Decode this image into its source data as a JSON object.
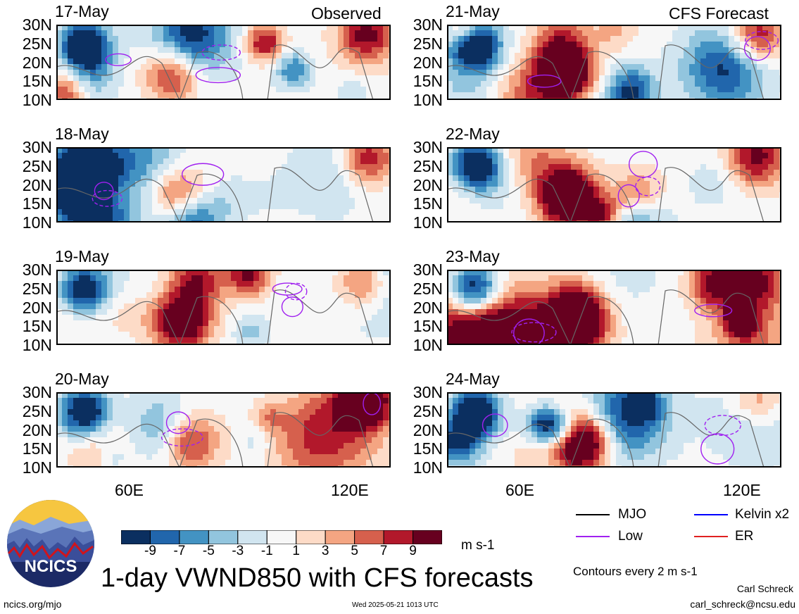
{
  "header": {
    "observed_label": "Observed",
    "forecast_label": "CFS Forecast"
  },
  "panels": {
    "left": [
      "17-May",
      "18-May",
      "19-May",
      "20-May"
    ],
    "right": [
      "21-May",
      "22-May",
      "23-May",
      "24-May"
    ]
  },
  "chart_data": {
    "type": "heatmap",
    "title": "1-day VWND850 with CFS forecasts",
    "variable": "VWND850",
    "units": "m s-1",
    "y_ticks": [
      "30N",
      "25N",
      "20N",
      "15N",
      "10N"
    ],
    "x_ticks": [
      "60E",
      "120E"
    ],
    "lat_range": [
      10,
      30
    ],
    "lon_range": [
      40,
      130
    ],
    "colorbar_levels": [
      "-9",
      "-7",
      "-5",
      "-3",
      "-1",
      "1",
      "3",
      "5",
      "7",
      "9"
    ],
    "colorbar_colors": [
      "#0b2f60",
      "#2166ac",
      "#4393c3",
      "#92c5de",
      "#d1e5f0",
      "#f7f7f7",
      "#fddbc7",
      "#f4a582",
      "#d6604d",
      "#b2182b",
      "#67001f"
    ],
    "contour_interval_text": "Contours every 2 m s-1"
  },
  "legend": {
    "items": [
      {
        "label": "MJO",
        "color": "#000000"
      },
      {
        "label": "Kelvin x2",
        "color": "#0000ff"
      },
      {
        "label": "Low",
        "color": "#a020f0"
      },
      {
        "label": "ER",
        "color": "#e02020"
      }
    ]
  },
  "footer": {
    "logo_text": "NCICS",
    "url": "ncics.org/mjo",
    "timestamp": "Wed 2025-05-21 1013 UTC",
    "author": "Carl Schreck",
    "email": "carl_schreck@ncsu.edu"
  }
}
